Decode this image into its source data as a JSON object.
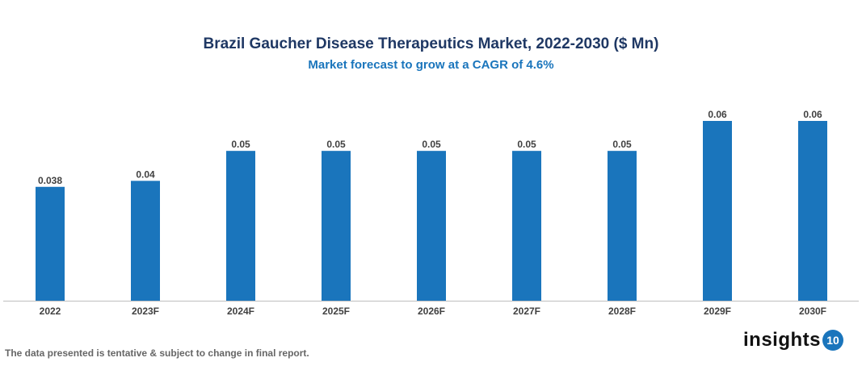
{
  "chart_data": {
    "type": "bar",
    "title": "Brazil Gaucher Disease Therapeutics Market, 2022-2030 ($ Mn)",
    "subtitle": "Market forecast to grow at a CAGR of 4.6%",
    "categories": [
      "2022",
      "2023F",
      "2024F",
      "2025F",
      "2026F",
      "2027F",
      "2028F",
      "2029F",
      "2030F"
    ],
    "values": [
      0.038,
      0.04,
      0.05,
      0.05,
      0.05,
      0.05,
      0.05,
      0.06,
      0.06
    ],
    "labels": [
      "0.038",
      "0.04",
      "0.05",
      "0.05",
      "0.05",
      "0.05",
      "0.05",
      "0.06",
      "0.06"
    ],
    "xlabel": "",
    "ylabel": "",
    "ylim": [
      0,
      0.06
    ],
    "grid": false,
    "bar_color": "#1a75bc"
  },
  "footnote": "The data presented is tentative & subject to change in final report.",
  "logo": {
    "text": "insights",
    "badge": "10"
  }
}
